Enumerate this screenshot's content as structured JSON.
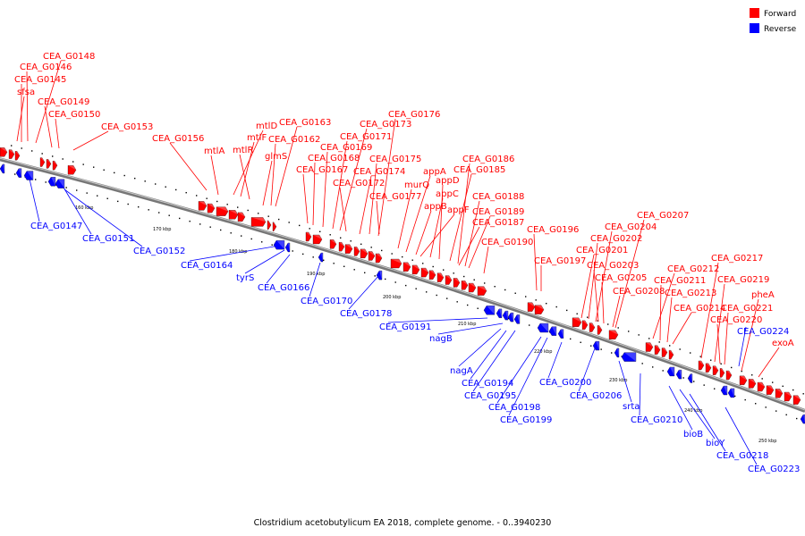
{
  "caption": "Clostridium acetobutylicum EA 2018, complete genome. - 0..3940230",
  "legend": {
    "forward": {
      "label": "Forward",
      "color": "#ff0000"
    },
    "reverse": {
      "label": "Reverse",
      "color": "#0000ff"
    }
  },
  "colors": {
    "forward": "#ff0000",
    "reverse": "#0000ff",
    "backbone": "#8a8a8a"
  },
  "ticks": [
    "160 kbp",
    "170 kbp",
    "180 kbp",
    "190 kbp",
    "200 kbp",
    "210 kbp",
    "220 kbp",
    "230 kbp",
    "240 kbp",
    "250 kbp"
  ],
  "forward_labels": [
    "CEA_G0148",
    "CEA_G0146",
    "CEA_G0145",
    "sfsa",
    "CEA_G0149",
    "CEA_G0150",
    "CEA_G0153",
    "CEA_G0156",
    "mtlA",
    "mtlD",
    "mtlF",
    "mtlR",
    "glmS",
    "CEA_G0162",
    "CEA_G0163",
    "CEA_G0171",
    "CEA_G0173",
    "CEA_G0176",
    "CEA_G0169",
    "CEA_G0168",
    "CEA_G0167",
    "CEA_G0174",
    "CEA_G0175",
    "CEA_G0172",
    "CEA_G0177",
    "murQ",
    "appA",
    "CEA_G0186",
    "CEA_G0185",
    "appD",
    "appC",
    "appF",
    "appB",
    "CEA_G0188",
    "CEA_G0187",
    "CEA_G0189",
    "CEA_G0190",
    "CEA_G0196",
    "CEA_G0197",
    "CEA_G0207",
    "CEA_G0204",
    "CEA_G0202",
    "CEA_G0201",
    "CEA_G0203",
    "CEA_G0205",
    "CEA_G0208",
    "CEA_G0212",
    "CEA_G0211",
    "CEA_G0213",
    "CEA_G0214",
    "CEA_G0217",
    "CEA_G0219",
    "CEA_G0221",
    "CEA_G0220",
    "pheA",
    "exoA"
  ],
  "reverse_labels": [
    "CEA_G0147",
    "CEA_G0151",
    "CEA_G0152",
    "CEA_G0164",
    "tyrS",
    "CEA_G0166",
    "CEA_G0170",
    "CEA_G0178",
    "CEA_G0191",
    "nagB",
    "nagA",
    "CEA_G0194",
    "CEA_G0195",
    "CEA_G0198",
    "CEA_G0199",
    "CEA_G0200",
    "CEA_G0206",
    "srta",
    "CEA_G0210",
    "bioB",
    "bioY",
    "CEA_G0218",
    "CEA_G0223",
    "CEA_G0224"
  ]
}
